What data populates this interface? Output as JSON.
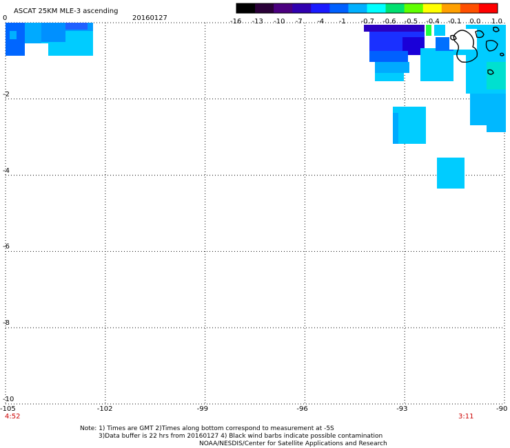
{
  "title": "ASCAT 25KM MLE-3 ascending",
  "date": "20160127",
  "colorbar": {
    "tick_labels": [
      "-16",
      "-13",
      "-10",
      "-7",
      "-4",
      "-1",
      "-0.7",
      "-0.6",
      "-0.5",
      "-0.4",
      "-0.1",
      "0.0",
      "1.0"
    ],
    "colors": [
      "#000000",
      "#2a0038",
      "#4b0080",
      "#3000b0",
      "#1a1aff",
      "#0060ff",
      "#00b0ff",
      "#00ffff",
      "#00e070",
      "#60ff00",
      "#ffff00",
      "#ffa000",
      "#ff5000",
      "#ff0000"
    ]
  },
  "axes": {
    "lon_ticks": [
      "-105",
      "-102",
      "-99",
      "-96",
      "-93",
      "-90"
    ],
    "lat_ticks": [
      "0",
      "-2",
      "-4",
      "-6",
      "-8",
      "-10"
    ],
    "lon_range": [
      -105,
      -90
    ],
    "lat_range": [
      -10,
      0
    ]
  },
  "time_labels": {
    "left": "4:52",
    "right": "3:11"
  },
  "notes": [
    "Note: 1) Times are GMT 2)Times along bottom correspond to measurement at -5S",
    "3)Data buffer is 22 hrs from 20160127 4) Black wind barbs indicate possible contamination",
    "NOAA/NESDIS/Center for Satellite Applications and Research"
  ],
  "colors": {
    "cyan": "#00ccff",
    "light_blue": "#0099ff",
    "blue": "#0055ff",
    "dark_blue": "#1a00d0",
    "deep_blue": "#2a00b0",
    "green": "#20ff40",
    "teal": "#00e8d0",
    "grid": "#000000",
    "time_red": "#cc0000"
  }
}
